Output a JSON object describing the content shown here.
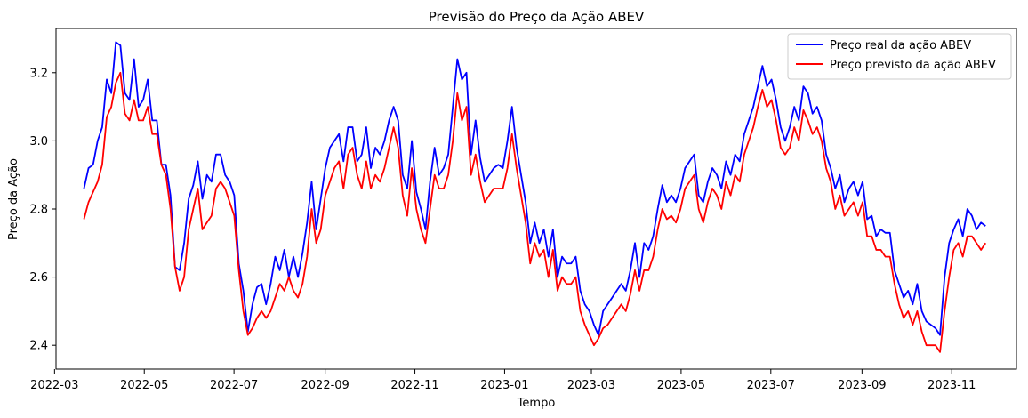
{
  "chart_data": {
    "type": "line",
    "title": "Previsão do Preço da Ação ABEV",
    "xlabel": "Tempo",
    "ylabel": "Preço da Ação",
    "x_start": "2022-03-21",
    "x_end": "2023-11-24",
    "xlim": [
      "2022-03-02",
      "2023-12-15"
    ],
    "ylim": [
      2.33,
      3.33
    ],
    "x_ticks": [
      "2022-03",
      "2022-05",
      "2022-07",
      "2022-09",
      "2022-11",
      "2023-01",
      "2023-03",
      "2023-05",
      "2023-07",
      "2023-09",
      "2023-11"
    ],
    "y_ticks": [
      "2.4",
      "2.6",
      "2.8",
      "3.0",
      "3.2"
    ],
    "grid": false,
    "legend_position": "top-right",
    "series": [
      {
        "name": "Preço real da ação ABEV",
        "color": "#0000ff",
        "values": [
          2.86,
          2.92,
          2.93,
          3.0,
          3.04,
          3.18,
          3.14,
          3.29,
          3.28,
          3.14,
          3.12,
          3.24,
          3.1,
          3.12,
          3.18,
          3.06,
          3.06,
          2.93,
          2.93,
          2.84,
          2.63,
          2.62,
          2.7,
          2.83,
          2.87,
          2.94,
          2.83,
          2.9,
          2.88,
          2.96,
          2.96,
          2.9,
          2.88,
          2.84,
          2.64,
          2.56,
          2.44,
          2.52,
          2.57,
          2.58,
          2.52,
          2.58,
          2.66,
          2.62,
          2.68,
          2.6,
          2.66,
          2.6,
          2.67,
          2.76,
          2.88,
          2.74,
          2.83,
          2.92,
          2.98,
          3.0,
          3.02,
          2.94,
          3.04,
          3.04,
          2.94,
          2.96,
          3.04,
          2.92,
          2.98,
          2.96,
          3.0,
          3.06,
          3.1,
          3.06,
          2.9,
          2.86,
          3.0,
          2.85,
          2.8,
          2.74,
          2.88,
          2.98,
          2.9,
          2.92,
          2.96,
          3.1,
          3.24,
          3.18,
          3.2,
          2.96,
          3.06,
          2.95,
          2.88,
          2.9,
          2.92,
          2.93,
          2.92,
          3.0,
          3.1,
          2.98,
          2.9,
          2.82,
          2.7,
          2.76,
          2.7,
          2.74,
          2.66,
          2.74,
          2.6,
          2.66,
          2.64,
          2.64,
          2.66,
          2.56,
          2.52,
          2.5,
          2.46,
          2.43,
          2.5,
          2.52,
          2.54,
          2.56,
          2.58,
          2.56,
          2.62,
          2.7,
          2.6,
          2.7,
          2.68,
          2.72,
          2.8,
          2.87,
          2.82,
          2.84,
          2.82,
          2.86,
          2.92,
          2.94,
          2.96,
          2.84,
          2.82,
          2.88,
          2.92,
          2.9,
          2.86,
          2.94,
          2.9,
          2.96,
          2.94,
          3.02,
          3.06,
          3.1,
          3.16,
          3.22,
          3.16,
          3.18,
          3.12,
          3.04,
          3.0,
          3.04,
          3.1,
          3.06,
          3.16,
          3.14,
          3.08,
          3.1,
          3.06,
          2.96,
          2.92,
          2.86,
          2.9,
          2.82,
          2.86,
          2.88,
          2.84,
          2.88,
          2.77,
          2.78,
          2.72,
          2.74,
          2.73,
          2.73,
          2.62,
          2.58,
          2.54,
          2.56,
          2.52,
          2.58,
          2.5,
          2.47,
          2.46,
          2.45,
          2.43,
          2.6,
          2.7,
          2.74,
          2.77,
          2.72,
          2.8,
          2.78,
          2.74,
          2.76,
          2.75
        ]
      },
      {
        "name": "Preço previsto da ação ABEV",
        "color": "#ff0000",
        "values": [
          2.77,
          2.82,
          2.85,
          2.88,
          2.93,
          3.07,
          3.1,
          3.17,
          3.2,
          3.08,
          3.06,
          3.12,
          3.06,
          3.06,
          3.1,
          3.02,
          3.02,
          2.93,
          2.9,
          2.8,
          2.63,
          2.56,
          2.6,
          2.74,
          2.8,
          2.86,
          2.74,
          2.76,
          2.78,
          2.86,
          2.88,
          2.86,
          2.82,
          2.78,
          2.62,
          2.5,
          2.43,
          2.45,
          2.48,
          2.5,
          2.48,
          2.5,
          2.54,
          2.58,
          2.56,
          2.6,
          2.56,
          2.54,
          2.58,
          2.66,
          2.8,
          2.7,
          2.74,
          2.84,
          2.88,
          2.92,
          2.94,
          2.86,
          2.96,
          2.98,
          2.9,
          2.86,
          2.94,
          2.86,
          2.9,
          2.88,
          2.92,
          2.98,
          3.04,
          2.98,
          2.84,
          2.78,
          2.92,
          2.8,
          2.74,
          2.7,
          2.8,
          2.9,
          2.86,
          2.86,
          2.9,
          3.0,
          3.14,
          3.06,
          3.1,
          2.9,
          2.96,
          2.88,
          2.82,
          2.84,
          2.86,
          2.86,
          2.86,
          2.92,
          3.02,
          2.92,
          2.84,
          2.76,
          2.64,
          2.7,
          2.66,
          2.68,
          2.6,
          2.68,
          2.56,
          2.6,
          2.58,
          2.58,
          2.6,
          2.5,
          2.46,
          2.43,
          2.4,
          2.42,
          2.45,
          2.46,
          2.48,
          2.5,
          2.52,
          2.5,
          2.55,
          2.62,
          2.56,
          2.62,
          2.62,
          2.66,
          2.74,
          2.8,
          2.77,
          2.78,
          2.76,
          2.8,
          2.86,
          2.88,
          2.9,
          2.8,
          2.76,
          2.82,
          2.86,
          2.84,
          2.8,
          2.88,
          2.84,
          2.9,
          2.88,
          2.96,
          3.0,
          3.04,
          3.1,
          3.15,
          3.1,
          3.12,
          3.06,
          2.98,
          2.96,
          2.98,
          3.04,
          3.0,
          3.09,
          3.06,
          3.02,
          3.04,
          3.0,
          2.92,
          2.88,
          2.8,
          2.84,
          2.78,
          2.8,
          2.82,
          2.78,
          2.82,
          2.72,
          2.72,
          2.68,
          2.68,
          2.66,
          2.66,
          2.58,
          2.52,
          2.48,
          2.5,
          2.46,
          2.5,
          2.44,
          2.4,
          2.4,
          2.4,
          2.38,
          2.5,
          2.6,
          2.68,
          2.7,
          2.66,
          2.72,
          2.72,
          2.7,
          2.68,
          2.7
        ]
      }
    ]
  }
}
